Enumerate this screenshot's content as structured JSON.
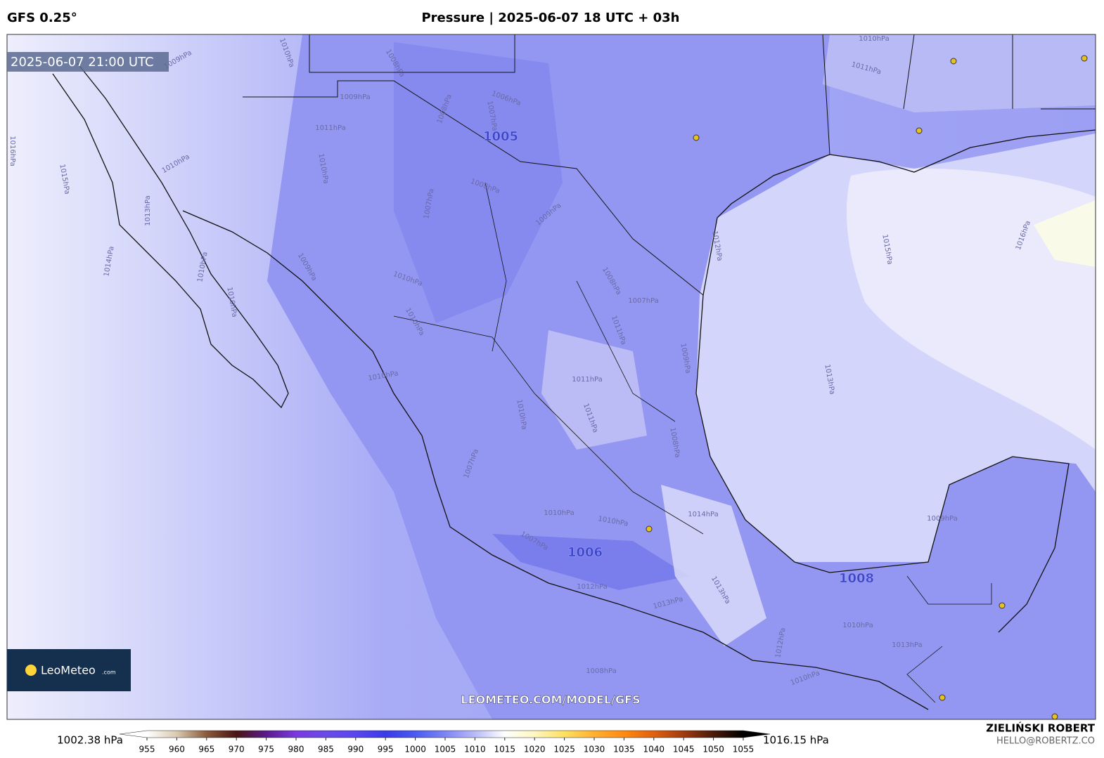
{
  "header": {
    "model": "GFS 0.25°",
    "title": "Pressure | 2025-06-07 18 UTC + 03h"
  },
  "timestamp": "2025-06-07 21:00 UTC",
  "pressure_centers": [
    "1005",
    "1006",
    "1008"
  ],
  "isobar_labels": [
    "1010hPa",
    "1011hPa",
    "1009hPa",
    "1010hPa",
    "1008hPa",
    "1009hPa",
    "1006hPa",
    "1007hPa",
    "1008hPa",
    "1011hPa",
    "1010hPa",
    "1010hPa",
    "1016hPa",
    "1015hPa",
    "1013hPa",
    "1014hPa",
    "1010hPa",
    "1009hPa",
    "1010hPa",
    "1007hPa",
    "1008hPa",
    "1009hPa",
    "1008hPa",
    "1007hPa",
    "1010hPa",
    "1010hPa",
    "1011hPa",
    "1009hPa",
    "1012hPa",
    "1015hPa",
    "1016hPa",
    "1013hPa",
    "1010hPa",
    "1011hPa",
    "1010hPa",
    "1011hPa",
    "1008hPa",
    "1007hPa",
    "1010hPa",
    "1010hPa",
    "1014hPa",
    "1009hPa",
    "1007hPa",
    "1012hPa",
    "1013hPa",
    "1013hPa",
    "1010hPa",
    "1012hPa",
    "1008hPa",
    "1010hPa",
    "1013hPa"
  ],
  "logo": {
    "name": "LeoMeteo",
    "suffix": ".com"
  },
  "watermark": "LEOMETEO.COM/MODEL/GFS",
  "colorbar": {
    "min_label": "1002.38 hPa",
    "max_label": "1016.15 hPa",
    "ticks": [
      955,
      960,
      965,
      970,
      975,
      980,
      985,
      990,
      995,
      1000,
      1005,
      1010,
      1015,
      1020,
      1025,
      1030,
      1035,
      1040,
      1045,
      1050,
      1055
    ],
    "colors": [
      "#ffffff",
      "#d9c9b0",
      "#8a5a3c",
      "#4a1414",
      "#5a1a8c",
      "#7a3ae0",
      "#6a4ae8",
      "#5a46f0",
      "#3a3ae8",
      "#4a5af0",
      "#7e84f4",
      "#b8baf8",
      "#ffffff",
      "#fff6c0",
      "#ffe060",
      "#ffb030",
      "#ff8a10",
      "#e06010",
      "#a03a10",
      "#4a1a08",
      "#000000"
    ]
  },
  "credit": {
    "name": "ZIELIŃSKI ROBERT",
    "email": "HELLO@ROBERTZ.CO"
  }
}
